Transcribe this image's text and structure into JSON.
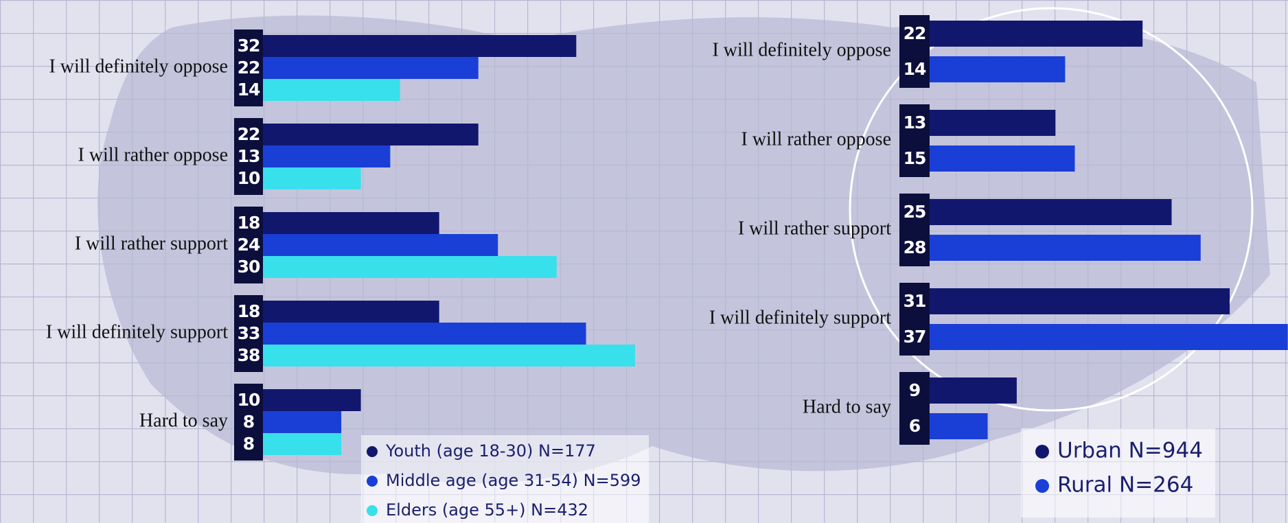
{
  "chart_data": [
    {
      "type": "bar",
      "orientation": "horizontal",
      "categories": [
        "I will definitely oppose",
        "I will rather oppose",
        "I will rather support",
        "I will definitely support",
        "Hard to say"
      ],
      "series": [
        {
          "name": "Youth (age 18-30) N=177",
          "color": "#12176e",
          "values": [
            32,
            22,
            18,
            18,
            10
          ]
        },
        {
          "name": "Middle age (age 31-54) N=599",
          "color": "#1a3fd6",
          "values": [
            22,
            13,
            24,
            33,
            8
          ]
        },
        {
          "name": "Elders (age 55+) N=432",
          "color": "#38e0ec",
          "values": [
            14,
            10,
            30,
            38,
            8
          ]
        }
      ]
    },
    {
      "type": "bar",
      "orientation": "horizontal",
      "categories": [
        "I will definitely oppose",
        "I will rather oppose",
        "I will rather support",
        "I will definitely support",
        "Hard to say"
      ],
      "series": [
        {
          "name": "Urban N=944",
          "color": "#12176e",
          "values": [
            22,
            13,
            25,
            31,
            9
          ]
        },
        {
          "name": "Rural N=264",
          "color": "#1a3fd6",
          "values": [
            14,
            15,
            28,
            37,
            6
          ]
        }
      ]
    }
  ]
}
